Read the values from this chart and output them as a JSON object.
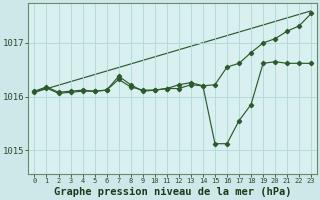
{
  "background_color": "#cce8e8",
  "plot_bg_color": "#d8f0f0",
  "grid_color": "#b0d8d8",
  "line_color": "#2d5a2d",
  "xlabel": "Graphe pression niveau de la mer (hPa)",
  "xlabel_fontsize": 7.5,
  "xlim": [
    -0.5,
    23.5
  ],
  "ylim": [
    1014.55,
    1017.75
  ],
  "yticks": [
    1015,
    1016,
    1017
  ],
  "ytick_fontsize": 6.5,
  "xtick_fontsize": 5.0,
  "xticks": [
    0,
    1,
    2,
    3,
    4,
    5,
    6,
    7,
    8,
    9,
    10,
    11,
    12,
    13,
    14,
    15,
    16,
    17,
    18,
    19,
    20,
    21,
    22,
    23
  ],
  "line1_x": [
    0,
    1,
    2,
    3,
    4,
    5,
    6,
    7,
    8,
    9,
    10,
    11,
    12,
    13,
    14,
    15,
    16,
    17,
    18,
    19,
    20,
    21,
    22,
    23
  ],
  "line1_y": [
    1016.1,
    1016.18,
    1016.08,
    1016.1,
    1016.12,
    1016.1,
    1016.12,
    1016.32,
    1016.18,
    1016.12,
    1016.12,
    1016.15,
    1016.15,
    1016.22,
    1016.2,
    1016.22,
    1016.55,
    1016.62,
    1016.82,
    1017.0,
    1017.08,
    1017.22,
    1017.32,
    1017.55
  ],
  "line2_x": [
    0,
    1,
    2,
    3,
    4,
    5,
    6,
    7,
    8,
    9,
    10,
    11,
    12,
    13,
    14,
    15,
    16,
    17,
    18,
    19,
    20,
    21,
    22,
    23
  ],
  "line2_y": [
    1016.08,
    1016.16,
    1016.06,
    1016.08,
    1016.1,
    1016.1,
    1016.12,
    1016.38,
    1016.22,
    1016.1,
    1016.12,
    1016.15,
    1016.22,
    1016.26,
    1016.2,
    1015.12,
    1015.12,
    1015.55,
    1015.85,
    1016.62,
    1016.65,
    1016.62,
    1016.62,
    1016.62
  ],
  "line3_x": [
    0,
    23
  ],
  "line3_y": [
    1016.08,
    1017.6
  ],
  "figsize": [
    3.2,
    2.0
  ],
  "dpi": 100
}
